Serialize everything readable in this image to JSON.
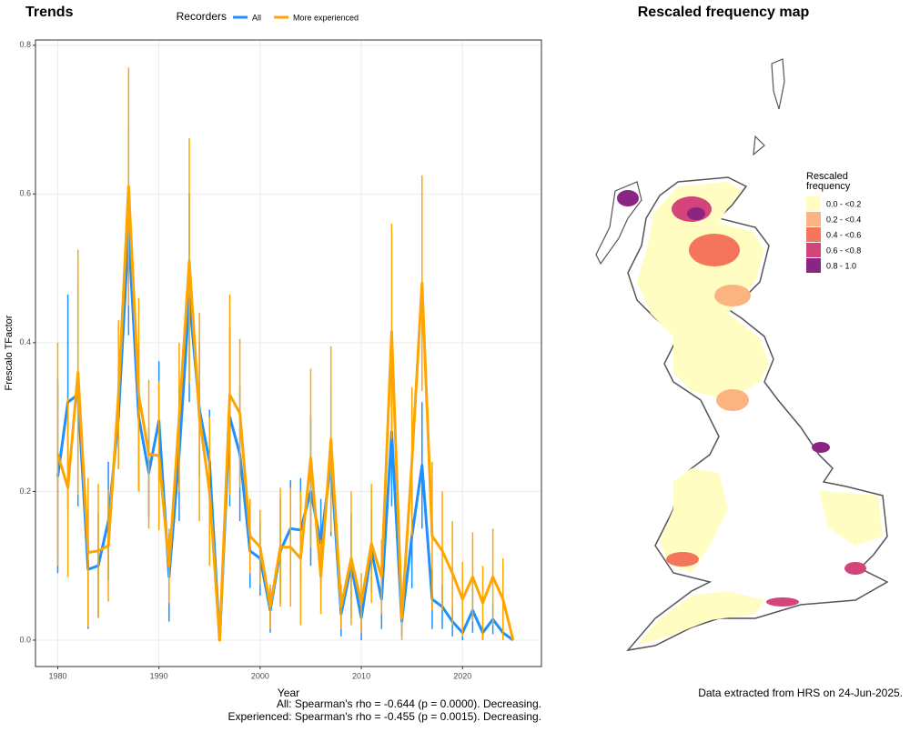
{
  "chart_data": {
    "type": "line",
    "title": "Trends",
    "x_label": "Year",
    "y_label": "Frescalo TFactor",
    "legend_title": "Recorders",
    "x": [
      1980,
      1981,
      1982,
      1983,
      1984,
      1985,
      1986,
      1987,
      1988,
      1989,
      1990,
      1991,
      1992,
      1993,
      1994,
      1995,
      1996,
      1997,
      1998,
      1999,
      2000,
      2001,
      2002,
      2003,
      2004,
      2005,
      2006,
      2007,
      2008,
      2009,
      2010,
      2011,
      2012,
      2013,
      2014,
      2015,
      2016,
      2017,
      2018,
      2019,
      2020,
      2021,
      2022,
      2023,
      2024,
      2025
    ],
    "series": [
      {
        "name": "All",
        "color": "#1e90ff",
        "values": [
          0.22,
          0.32,
          0.33,
          0.095,
          0.1,
          0.16,
          0.3,
          0.55,
          0.3,
          0.225,
          0.295,
          0.085,
          0.25,
          0.46,
          0.31,
          0.24,
          0.0,
          0.3,
          0.25,
          0.12,
          0.11,
          0.04,
          0.12,
          0.15,
          0.148,
          0.2,
          0.13,
          0.24,
          0.035,
          0.1,
          0.03,
          0.12,
          0.055,
          0.28,
          0.025,
          0.14,
          0.235,
          0.055,
          0.045,
          0.025,
          0.01,
          0.04,
          0.01,
          0.028,
          0.01,
          0.0
        ],
        "errors": [
          0.13,
          0.145,
          0.15,
          0.08,
          0.07,
          0.08,
          0.07,
          0.14,
          0.1,
          0.06,
          0.08,
          0.06,
          0.09,
          0.14,
          0.09,
          0.07,
          0.0,
          0.12,
          0.09,
          0.05,
          0.05,
          0.03,
          0.07,
          0.065,
          0.07,
          0.1,
          0.06,
          0.1,
          0.03,
          0.07,
          0.03,
          0.055,
          0.04,
          0.1,
          0.02,
          0.07,
          0.085,
          0.04,
          0.03,
          0.02,
          0.01,
          0.03,
          0.01,
          0.02,
          0.01,
          0.0
        ]
      },
      {
        "name": "More experienced",
        "color": "#ffa500",
        "values": [
          0.25,
          0.205,
          0.36,
          0.118,
          0.12,
          0.127,
          0.33,
          0.61,
          0.33,
          0.25,
          0.248,
          0.1,
          0.3,
          0.51,
          0.3,
          0.2,
          0.0,
          0.33,
          0.305,
          0.14,
          0.125,
          0.045,
          0.125,
          0.125,
          0.11,
          0.245,
          0.085,
          0.27,
          0.045,
          0.11,
          0.05,
          0.13,
          0.085,
          0.415,
          0.03,
          0.24,
          0.48,
          0.14,
          0.12,
          0.09,
          0.055,
          0.085,
          0.05,
          0.085,
          0.055,
          0.0
        ],
        "errors": [
          0.15,
          0.12,
          0.165,
          0.1,
          0.09,
          0.075,
          0.1,
          0.16,
          0.13,
          0.1,
          0.1,
          0.05,
          0.1,
          0.165,
          0.14,
          0.1,
          0.0,
          0.135,
          0.1,
          0.05,
          0.05,
          0.03,
          0.08,
          0.08,
          0.09,
          0.12,
          0.05,
          0.125,
          0.03,
          0.09,
          0.04,
          0.08,
          0.05,
          0.145,
          0.03,
          0.1,
          0.145,
          0.1,
          0.08,
          0.07,
          0.05,
          0.06,
          0.05,
          0.065,
          0.055,
          0.0
        ]
      }
    ],
    "xlim": [
      1977.8,
      2027.8
    ],
    "ylim": [
      -0.0355,
      0.807
    ],
    "xticks": [
      1980,
      1990,
      2000,
      2010,
      2020
    ],
    "yticks": [
      {
        "value": 0,
        "label": "0.0"
      },
      0.2,
      0.4,
      0.6,
      0.8
    ],
    "grid": true,
    "legend_position": "top",
    "annotations": [
      "All: Spearman's rho = -0.644 (p = 0.0000). Decreasing.",
      "Experienced: Spearman's rho = -0.455 (p = 0.0015). Decreasing."
    ]
  },
  "map": {
    "title": "Rescaled frequency map",
    "legend": {
      "title_lines": [
        "Rescaled",
        "frequency"
      ],
      "entries": [
        {
          "label": "0.0 - <0.2",
          "color": "#fffdc2"
        },
        {
          "label": "0.2 - <0.4",
          "color": "#fbb47f"
        },
        {
          "label": "0.4 - <0.6",
          "color": "#f4755b"
        },
        {
          "label": "0.6 - <0.8",
          "color": "#d2447a"
        },
        {
          "label": "0.8 - 1.0",
          "color": "#8b2583"
        }
      ]
    },
    "footer": "Data extracted from HRS on 24-Jun-2025."
  }
}
